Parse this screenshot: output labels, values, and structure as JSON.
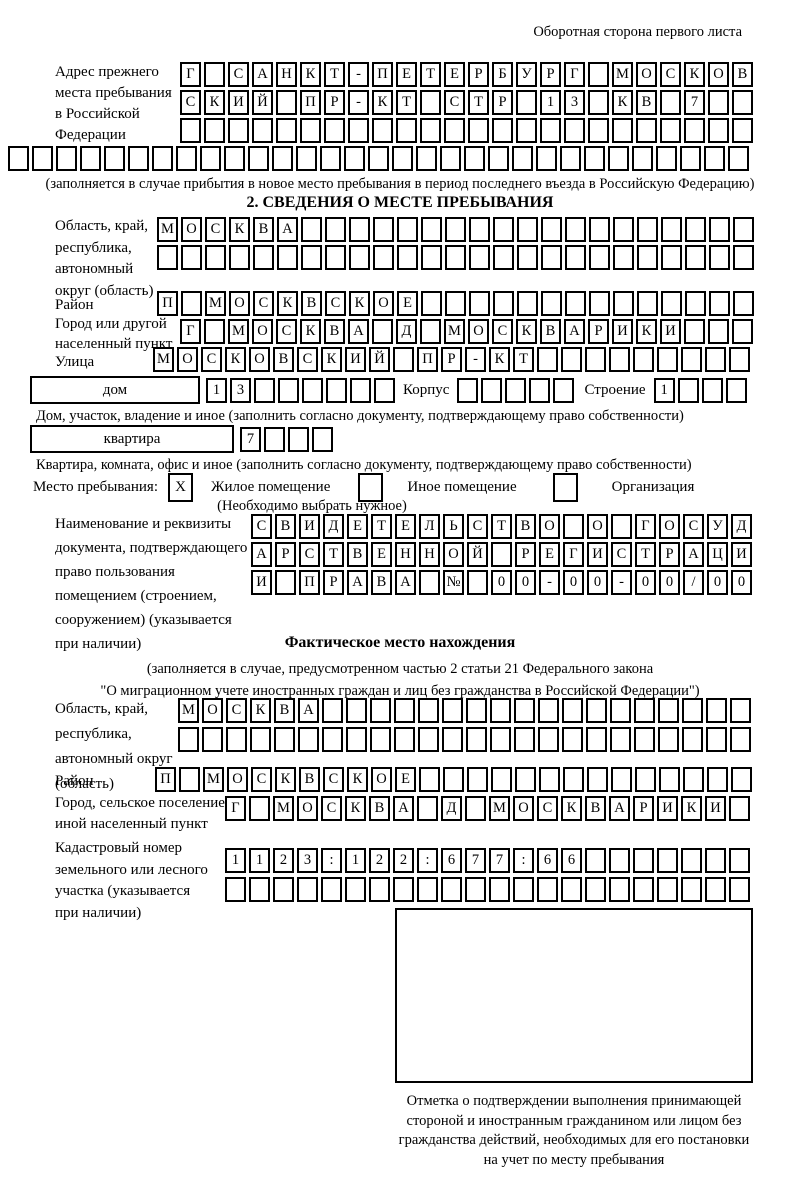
{
  "header": {
    "back_side_note": "Оборотная сторона первого листа"
  },
  "prev_address": {
    "label": "Адрес прежнего\nместа пребывания\nв Российской\nФедерации",
    "rows": [
      {
        "chars": "Г САНКТ-ПЕТЕРБУРГ МОСКОВ",
        "len": 24
      },
      {
        "chars": "СКИЙ ПР-КТ СТР 13 КВ 7",
        "len": 24
      },
      {
        "chars": "",
        "len": 24
      },
      {
        "chars": "",
        "len": 31
      }
    ],
    "note": "(заполняется в случае прибытия в новое место пребывания в период последнего въезда в Российскую Федерацию)"
  },
  "section2": {
    "title": "2. СВЕДЕНИЯ О МЕСТЕ ПРЕБЫВАНИЯ",
    "oblast": {
      "label": "Область, край,\nреспублика,\nавтономный\nокруг (область)",
      "rows": [
        {
          "chars": "МОСКВА",
          "len": 25
        },
        {
          "chars": "",
          "len": 25
        }
      ]
    },
    "raion": {
      "label": "Район",
      "row": {
        "chars": "П МОСКВСКОЕ",
        "len": 25
      }
    },
    "gorod": {
      "label": "Город или другой\nнаселенный пункт",
      "row": {
        "chars": "Г МОСКВА Д МОСКВАРИКИ",
        "len": 24
      }
    },
    "ulitsa": {
      "label": "Улица",
      "row": {
        "chars": "МОСКОВСКИЙ ПР-КТ",
        "len": 25
      }
    },
    "dom": {
      "box_label": "дом",
      "row": {
        "chars": "13",
        "len": 8
      },
      "korpus_label": "Корпус",
      "korpus_row": {
        "chars": "",
        "len": 5
      },
      "stroenie_label": "Строение",
      "stroenie_row": {
        "chars": "1",
        "len": 4
      },
      "note": "Дом, участок, владение и иное (заполнить согласно документу, подтверждающему право собственности)"
    },
    "kvartira": {
      "box_label": "квартира",
      "row": {
        "chars": "7",
        "len": 4
      },
      "note": "Квартира, комната, офис и иное (заполнить согласно документу, подтверждающему право собственности)"
    },
    "mesto": {
      "label": "Место пребывания:",
      "options": [
        {
          "mark": "X",
          "label": "Жилое помещение"
        },
        {
          "mark": "",
          "label": "Иное помещение"
        },
        {
          "mark": "",
          "label": "Организация"
        }
      ],
      "note": "(Необходимо выбрать нужное)"
    },
    "document": {
      "label": "Наименование и реквизиты\nдокумента, подтверждающего\nправо пользования\nпомещением (строением,\nсооружением) (указывается\nпри наличии)",
      "rows": [
        {
          "chars": "СВИДЕТЕЛЬСТВО О ГОСУД",
          "len": 21
        },
        {
          "chars": "АРСТВЕННОЙ РЕГИСТРАЦИ",
          "len": 21
        },
        {
          "chars": "И ПРАВА № 00-00-00/000",
          "len": 21
        }
      ]
    }
  },
  "fact": {
    "title": "Фактическое место нахождения",
    "note": "(заполняется в случае, предусмотренном частью 2 статьи 21 Федерального закона\n\"О миграционном учете иностранных граждан и лиц без гражданства в Российской Федерации\")",
    "oblast": {
      "label": "Область, край,\nреспублика,\nавтономный округ\n(область)",
      "rows": [
        {
          "chars": "МОСКВА",
          "len": 24
        },
        {
          "chars": "",
          "len": 24
        }
      ]
    },
    "raion": {
      "label": "Район",
      "row": {
        "chars": "П МОСКВСКОЕ",
        "len": 25
      }
    },
    "gorod": {
      "label": "Город, сельское поселение,\nиной населенный пункт",
      "row": {
        "chars": "Г МОСКВА Д МОСКВАРИКИ",
        "len": 22
      }
    },
    "kadastr": {
      "label": "Кадастровый номер\nземельного или лесного\nучастка (указывается\nпри наличии)",
      "rows": [
        {
          "chars": "1123:122:677:66",
          "len": 22
        },
        {
          "chars": "",
          "len": 22
        }
      ]
    },
    "stamp_caption": "Отметка о подтверждении выполнения принимающей\nстороной и иностранным гражданином или лицом без\nгражданства действий, необходимых для его постановки\nна учет по месту пребывания"
  }
}
